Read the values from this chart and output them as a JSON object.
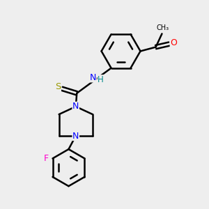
{
  "bg_color": "#eeeeee",
  "bond_color": "#000000",
  "bond_width": 1.8,
  "atom_colors": {
    "O": "#ff0000",
    "N": "#0000ff",
    "S": "#999900",
    "F": "#ff00cc",
    "H": "#008888",
    "C": "#000000"
  }
}
